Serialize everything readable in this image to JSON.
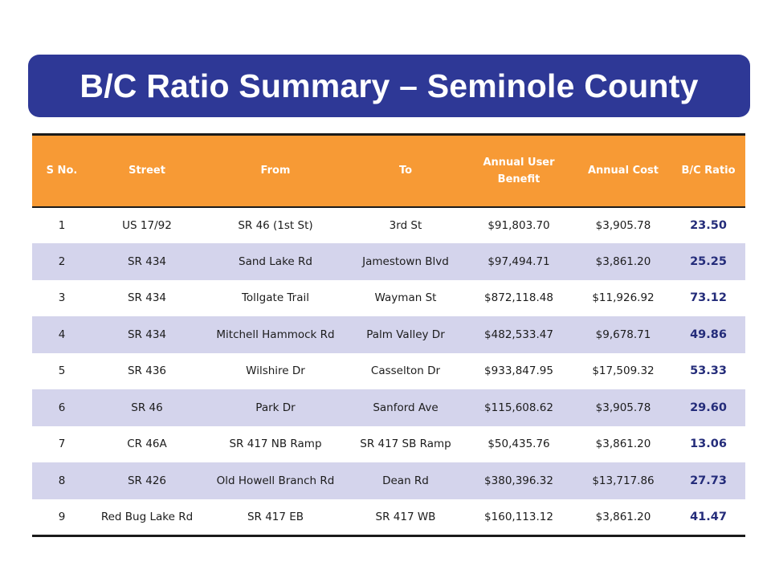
{
  "title": "B/C Ratio Summary – Seminole County",
  "table": {
    "headers": [
      "S No.",
      "Street",
      "From",
      "To",
      "Annual User Benefit",
      "Annual Cost",
      "B/C Ratio"
    ],
    "rows": [
      [
        "1",
        "US 17/92",
        "SR 46 (1st St)",
        "3rd St",
        "$91,803.70",
        "$3,905.78",
        "23.50"
      ],
      [
        "2",
        "SR 434",
        "Sand Lake Rd",
        "Jamestown Blvd",
        "$97,494.71",
        "$3,861.20",
        "25.25"
      ],
      [
        "3",
        "SR 434",
        "Tollgate Trail",
        "Wayman St",
        "$872,118.48",
        "$11,926.92",
        "73.12"
      ],
      [
        "4",
        "SR 434",
        "Mitchell Hammock Rd",
        "Palm Valley Dr",
        "$482,533.47",
        "$9,678.71",
        "49.86"
      ],
      [
        "5",
        "SR 436",
        "Wilshire Dr",
        "Casselton Dr",
        "$933,847.95",
        "$17,509.32",
        "53.33"
      ],
      [
        "6",
        "SR 46",
        "Park Dr",
        "Sanford Ave",
        "$115,608.62",
        "$3,905.78",
        "29.60"
      ],
      [
        "7",
        "CR 46A",
        "SR 417 NB Ramp",
        "SR 417 SB Ramp",
        "$50,435.76",
        "$3,861.20",
        "13.06"
      ],
      [
        "8",
        "SR 426",
        "Old Howell Branch Rd",
        "Dean Rd",
        "$380,396.32",
        "$13,717.86",
        "27.73"
      ],
      [
        "9",
        "Red Bug Lake Rd",
        "SR 417 EB",
        "SR 417 WB",
        "$160,113.12",
        "$3,861.20",
        "41.47"
      ]
    ]
  },
  "colors": {
    "title_bg": "#2e3896",
    "header_bg": "#f79a35",
    "row_alt": "#d4d4ec",
    "ratio_text": "#242c7a"
  }
}
